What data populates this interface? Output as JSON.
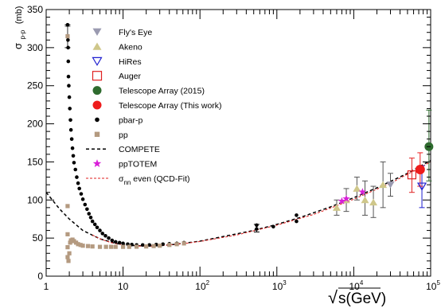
{
  "chart_data": {
    "type": "scatter",
    "title": "",
    "xlabel": "√s(GeV)",
    "xlabel_parts": {
      "radical": "√",
      "radicand": "s(GeV)"
    },
    "ylabel": "σ p-p (mb)",
    "ylabel_parts": {
      "sigma": "σ",
      "sub": "p-p",
      "unit": "(mb)"
    },
    "x_scale": "log",
    "xlim": [
      1,
      100000
    ],
    "ylim": [
      0,
      350
    ],
    "grid": false,
    "legend_position": "top-center",
    "x_ticks": [
      {
        "value": 1,
        "base": "1",
        "exp": ""
      },
      {
        "value": 10,
        "base": "10",
        "exp": ""
      },
      {
        "value": 100,
        "base": "10",
        "exp": "2"
      },
      {
        "value": 1000,
        "base": "10",
        "exp": "3"
      },
      {
        "value": 10000,
        "base": "10",
        "exp": "4"
      },
      {
        "value": 100000,
        "base": "10",
        "exp": "5"
      }
    ],
    "y_ticks": [
      0,
      50,
      100,
      150,
      200,
      250,
      300,
      350
    ],
    "series": [
      {
        "name": "Fly's Eye",
        "marker": "triangle-down",
        "color": "#9a9ab0",
        "points": [
          {
            "x": 30000,
            "y": 120,
            "lo": 105,
            "hi": 135
          }
        ]
      },
      {
        "name": "Akeno",
        "marker": "triangle-up",
        "color": "#cfc78a",
        "points": [
          {
            "x": 6000,
            "y": 90,
            "lo": 80,
            "hi": 100
          },
          {
            "x": 8000,
            "y": 100,
            "lo": 85,
            "hi": 115
          },
          {
            "x": 11000,
            "y": 115,
            "lo": 100,
            "hi": 130
          },
          {
            "x": 14000,
            "y": 100,
            "lo": 80,
            "hi": 125
          },
          {
            "x": 18000,
            "y": 97,
            "lo": 77,
            "hi": 118
          },
          {
            "x": 24000,
            "y": 120,
            "lo": 90,
            "hi": 150
          }
        ]
      },
      {
        "name": "HiRes",
        "marker": "triangle-down-open",
        "color": "#1f1fd0",
        "points": [
          {
            "x": 77000,
            "y": 118,
            "lo": 90,
            "hi": 145
          }
        ]
      },
      {
        "name": "Auger",
        "marker": "square-open",
        "color": "#e02020",
        "points": [
          {
            "x": 57000,
            "y": 133,
            "lo": 110,
            "hi": 155
          }
        ]
      },
      {
        "name": "Telescope Array (2015)",
        "marker": "circle",
        "color": "#2e6b2e",
        "points": [
          {
            "x": 95000,
            "y": 170,
            "lo": 125,
            "hi": 218
          }
        ]
      },
      {
        "name": "Telescope Array (This work)",
        "marker": "circle",
        "color": "#ee1c1c",
        "points": [
          {
            "x": 73000,
            "y": 140,
            "lo": 118,
            "hi": 162
          }
        ]
      },
      {
        "name": "pbar-p",
        "marker": "dot",
        "color": "#000000",
        "points": [
          {
            "x": 1.9,
            "y": 330,
            "lo": 300,
            "hi": 330
          },
          {
            "x": 1.92,
            "y": 310
          },
          {
            "x": 1.93,
            "y": 300
          },
          {
            "x": 1.94,
            "y": 282
          },
          {
            "x": 1.95,
            "y": 262
          },
          {
            "x": 1.97,
            "y": 250
          },
          {
            "x": 2.0,
            "y": 235
          },
          {
            "x": 2.03,
            "y": 220
          },
          {
            "x": 2.07,
            "y": 205
          },
          {
            "x": 2.1,
            "y": 192
          },
          {
            "x": 2.15,
            "y": 180
          },
          {
            "x": 2.2,
            "y": 168
          },
          {
            "x": 2.25,
            "y": 158
          },
          {
            "x": 2.3,
            "y": 149
          },
          {
            "x": 2.4,
            "y": 140
          },
          {
            "x": 2.5,
            "y": 130
          },
          {
            "x": 2.6,
            "y": 122
          },
          {
            "x": 2.7,
            "y": 115
          },
          {
            "x": 2.85,
            "y": 108
          },
          {
            "x": 3.0,
            "y": 101
          },
          {
            "x": 3.2,
            "y": 94
          },
          {
            "x": 3.4,
            "y": 88
          },
          {
            "x": 3.6,
            "y": 82
          },
          {
            "x": 3.8,
            "y": 77
          },
          {
            "x": 4.0,
            "y": 72
          },
          {
            "x": 4.3,
            "y": 68
          },
          {
            "x": 4.6,
            "y": 64
          },
          {
            "x": 5.0,
            "y": 60
          },
          {
            "x": 5.4,
            "y": 56
          },
          {
            "x": 5.9,
            "y": 53
          },
          {
            "x": 6.5,
            "y": 50
          },
          {
            "x": 7.2,
            "y": 47
          },
          {
            "x": 8.0,
            "y": 45
          },
          {
            "x": 9.0,
            "y": 44
          },
          {
            "x": 10.0,
            "y": 43
          },
          {
            "x": 11.5,
            "y": 42
          },
          {
            "x": 13.0,
            "y": 41.5
          },
          {
            "x": 15.0,
            "y": 41
          },
          {
            "x": 18.0,
            "y": 41
          },
          {
            "x": 22.0,
            "y": 41
          },
          {
            "x": 27.0,
            "y": 41.5
          },
          {
            "x": 33.0,
            "y": 42
          },
          {
            "x": 40.0,
            "y": 42.5
          },
          {
            "x": 50.0,
            "y": 43
          },
          {
            "x": 62.0,
            "y": 44
          },
          {
            "x": 546,
            "y": 62,
            "lo": 58,
            "hi": 68
          },
          {
            "x": 546,
            "y": 67
          },
          {
            "x": 900,
            "y": 65
          },
          {
            "x": 1800,
            "y": 72
          },
          {
            "x": 1800,
            "y": 80
          }
        ]
      },
      {
        "name": "pp",
        "marker": "square-small",
        "color": "#b49a80",
        "points": [
          {
            "x": 1.9,
            "y": 315,
            "lo": 300,
            "hi": 328
          },
          {
            "x": 1.9,
            "y": 92
          },
          {
            "x": 1.9,
            "y": 55
          },
          {
            "x": 1.9,
            "y": 38
          },
          {
            "x": 1.9,
            "y": 25
          },
          {
            "x": 1.95,
            "y": 20
          },
          {
            "x": 2.0,
            "y": 30
          },
          {
            "x": 2.05,
            "y": 44
          },
          {
            "x": 2.1,
            "y": 47
          },
          {
            "x": 2.2,
            "y": 48
          },
          {
            "x": 2.3,
            "y": 46
          },
          {
            "x": 2.45,
            "y": 44
          },
          {
            "x": 2.6,
            "y": 42
          },
          {
            "x": 2.8,
            "y": 41
          },
          {
            "x": 3.0,
            "y": 40
          },
          {
            "x": 3.5,
            "y": 39.5
          },
          {
            "x": 4.0,
            "y": 39
          },
          {
            "x": 5.0,
            "y": 38.5
          },
          {
            "x": 6.0,
            "y": 38.5
          },
          {
            "x": 7.0,
            "y": 38.5
          },
          {
            "x": 8.0,
            "y": 38.5
          },
          {
            "x": 10.0,
            "y": 38.5
          },
          {
            "x": 12.0,
            "y": 38.5
          },
          {
            "x": 15.0,
            "y": 38.7
          },
          {
            "x": 20.0,
            "y": 39
          },
          {
            "x": 25.0,
            "y": 39.5
          },
          {
            "x": 30.0,
            "y": 40
          },
          {
            "x": 40.0,
            "y": 41
          },
          {
            "x": 50.0,
            "y": 42
          },
          {
            "x": 62.0,
            "y": 43
          }
        ]
      },
      {
        "name": "COMPETE",
        "marker": "line-dashed",
        "color": "#000000",
        "line": [
          {
            "x": 1.0,
            "y": 110
          },
          {
            "x": 1.5,
            "y": 88
          },
          {
            "x": 2.0,
            "y": 75
          },
          {
            "x": 3.0,
            "y": 60
          },
          {
            "x": 5.0,
            "y": 49
          },
          {
            "x": 8.0,
            "y": 43
          },
          {
            "x": 12.0,
            "y": 40.5
          },
          {
            "x": 20.0,
            "y": 39.5
          },
          {
            "x": 30.0,
            "y": 40
          },
          {
            "x": 50.0,
            "y": 42
          },
          {
            "x": 100.0,
            "y": 46
          },
          {
            "x": 200.0,
            "y": 52
          },
          {
            "x": 500.0,
            "y": 60
          },
          {
            "x": 1000.0,
            "y": 68
          },
          {
            "x": 2000.0,
            "y": 77
          },
          {
            "x": 5000.0,
            "y": 91
          },
          {
            "x": 10000.0,
            "y": 103
          },
          {
            "x": 20000.0,
            "y": 116
          },
          {
            "x": 50000.0,
            "y": 135
          },
          {
            "x": 100000.0,
            "y": 152
          }
        ]
      },
      {
        "name": "ppTOTEM",
        "marker": "star",
        "color": "#d81fd8",
        "points": [
          {
            "x": 7000,
            "y": 98.5
          },
          {
            "x": 8000,
            "y": 101.7
          },
          {
            "x": 13000,
            "y": 110.6
          }
        ]
      },
      {
        "name": "σ nn even (QCD-Fit)",
        "name_parts": {
          "sigma": "σ",
          "sub": "nn",
          "rest": " even (QCD-Fit)"
        },
        "marker": "line-dashed-thin",
        "color": "#e02020",
        "line": [
          {
            "x": 4.0,
            "y": 54
          },
          {
            "x": 5.0,
            "y": 49
          },
          {
            "x": 7.0,
            "y": 44
          },
          {
            "x": 10.0,
            "y": 41
          },
          {
            "x": 15.0,
            "y": 39.5
          },
          {
            "x": 25.0,
            "y": 39.5
          },
          {
            "x": 40.0,
            "y": 41
          },
          {
            "x": 70.0,
            "y": 43.5
          },
          {
            "x": 100.0,
            "y": 45.5
          },
          {
            "x": 300.0,
            "y": 54
          },
          {
            "x": 1000.0,
            "y": 67
          },
          {
            "x": 3000.0,
            "y": 81
          },
          {
            "x": 10000.0,
            "y": 101
          },
          {
            "x": 30000.0,
            "y": 122
          },
          {
            "x": 100000.0,
            "y": 150
          }
        ]
      }
    ]
  }
}
